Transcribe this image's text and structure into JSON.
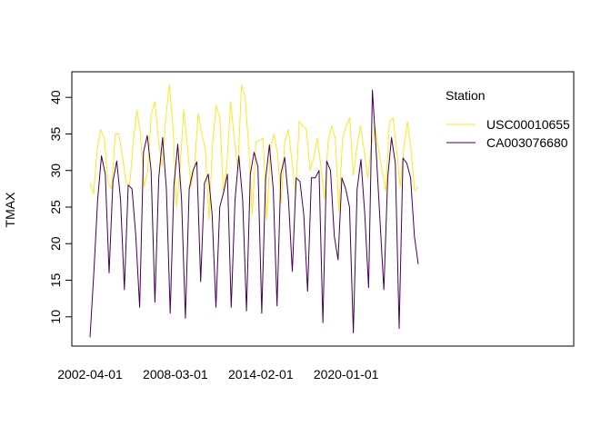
{
  "chart_data": {
    "type": "line",
    "title": "",
    "xlabel": "",
    "ylabel": "TMAX",
    "x_start": "2002-04-01",
    "x_end": "2025-01-01",
    "x_tick_labels": [
      "2002-04-01",
      "2008-03-01",
      "2014-02-01",
      "2020-01-01"
    ],
    "y_ticks": [
      10,
      15,
      20,
      25,
      30,
      35,
      40
    ],
    "ylim": [
      6,
      43.5
    ],
    "grid": false,
    "legend": {
      "title": "Station",
      "placement": "top-right-inside"
    },
    "series": [
      {
        "name": "USC00010655",
        "color": "#FDE725",
        "values": [
          28.3,
          26.8,
          33.0,
          35.6,
          34.3,
          28.3,
          27.5,
          35.0,
          35.0,
          32.0,
          28.3,
          28.0,
          34.0,
          38.3,
          35.0,
          27.8,
          30.0,
          37.8,
          39.4,
          34.0,
          30.6,
          37.2,
          41.7,
          36.1,
          25.0,
          30.6,
          38.3,
          33.3,
          27.8,
          30.6,
          37.8,
          35.0,
          32.8,
          23.3,
          33.9,
          38.9,
          37.2,
          26.7,
          31.1,
          39.4,
          34.4,
          30.0,
          41.7,
          40.0,
          33.3,
          23.9,
          33.9,
          34.1,
          34.4,
          23.3,
          33.0,
          35.0,
          32.2,
          25.6,
          33.9,
          35.6,
          31.1,
          26.7,
          36.7,
          36.1,
          35.6,
          30.0,
          31.7,
          34.4,
          30.6,
          26.1,
          33.9,
          36.1,
          34.4,
          24.4,
          34.4,
          36.1,
          37.2,
          29.4,
          33.3,
          36.1,
          32.8,
          28.9,
          33.3,
          36.1,
          32.8,
          30.0,
          27.2,
          36.7,
          37.2,
          32.8,
          27.8,
          33.0,
          36.7,
          32.8,
          27.2,
          27.8
        ]
      },
      {
        "name": "CA003076680",
        "color": "#440154",
        "values": [
          7.2,
          16.0,
          26.0,
          32.0,
          29.5,
          16.0,
          28.5,
          31.3,
          26.0,
          13.7,
          28.0,
          27.5,
          21.0,
          11.3,
          32.5,
          34.8,
          30.0,
          12.0,
          29.0,
          34.5,
          27.5,
          10.5,
          28.0,
          33.6,
          26.0,
          9.8,
          27.5,
          30.0,
          31.2,
          14.8,
          28.3,
          29.5,
          24.0,
          11.3,
          25.0,
          27.0,
          29.5,
          11.3,
          26.0,
          32.0,
          26.0,
          10.8,
          29.5,
          32.5,
          30.5,
          10.5,
          28.8,
          33.5,
          27.5,
          11.5,
          29.5,
          31.8,
          26.0,
          16.2,
          29.0,
          28.5,
          24.0,
          13.5,
          29.0,
          29.0,
          30.0,
          9.2,
          31.3,
          30.0,
          21.0,
          17.8,
          29.0,
          27.5,
          25.0,
          7.8,
          27.5,
          31.5,
          24.0,
          14.0,
          41.0,
          32.5,
          23.0,
          13.7,
          29.0,
          34.5,
          31.0,
          8.4,
          31.7,
          31.0,
          29.0,
          21.0,
          17.2
        ]
      }
    ]
  }
}
